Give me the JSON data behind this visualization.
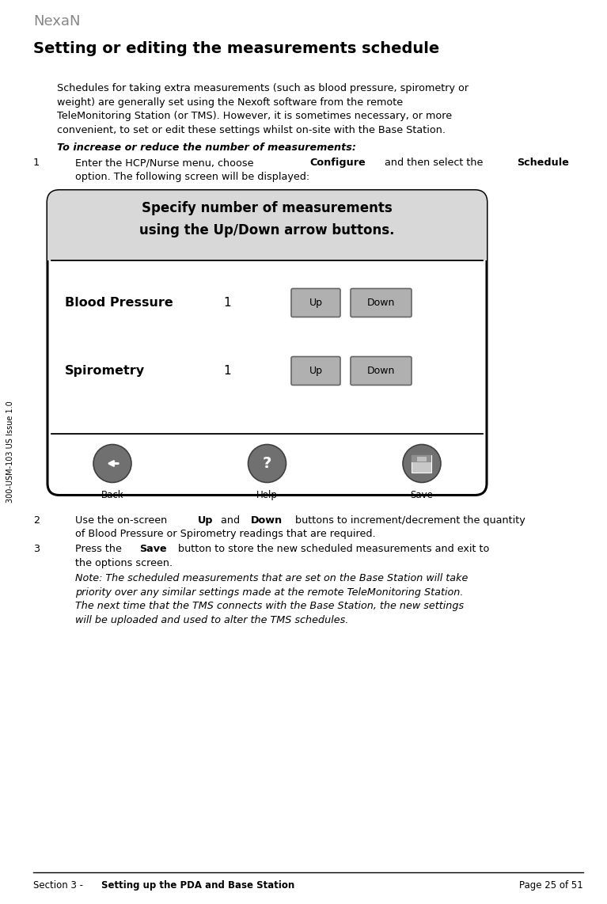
{
  "page_width": 7.67,
  "page_height": 11.42,
  "bg": "#ffffff",
  "logo": "NexaN",
  "logo_color": "#888888",
  "title": "Setting or editing the measurements schedule",
  "title_fs": 14,
  "body_fs": 9.2,
  "para1_line1": "Schedules for taking extra measurements (such as blood pressure, spirometry or",
  "para1_line2": "weight) are generally set using the Nexoft software from the remote",
  "para1_line3": "TeleMonitoring Station (or TMS). However, it is sometimes necessary, or more",
  "para1_line4": "convenient, to set or edit these settings whilst on-site with the Base Station.",
  "ibheading": "To increase or reduce the number of measurements:",
  "s1_pre": "Enter the HCP/Nurse menu, choose ",
  "s1_b1": "Configure",
  "s1_mid": " and then select the ",
  "s1_b2": "Schedule",
  "s1_line2": "option. The following screen will be displayed:",
  "screen_title1": "Specify number of measurements",
  "screen_title2": "using the Up/Down arrow buttons.",
  "screen_bp": "Blood Pressure",
  "screen_sp": "Spirometry",
  "screen_val": "1",
  "screen_up": "Up",
  "screen_down": "Down",
  "screen_back": "Back",
  "screen_help": "Help",
  "screen_save": "Save",
  "s2_pre": "Use the on-screen ",
  "s2_b1": "Up",
  "s2_mid": " and ",
  "s2_b2": "Down",
  "s2_post": " buttons to increment/decrement the quantity",
  "s2_line2": "of Blood Pressure or Spirometry readings that are required.",
  "s3_pre": "Press the ",
  "s3_b1": "Save",
  "s3_post": " button to store the new scheduled measurements and exit to",
  "s3_line2": "the options screen.",
  "note_line1": "Note: The scheduled measurements that are set on the Base Station will take",
  "note_line2": "priority over any similar settings made at the remote TeleMonitoring Station.",
  "note_line3": "The next time that the TMS connects with the Base Station, the new settings",
  "note_line4": "will be uploaded and used to alter the TMS schedules.",
  "footer_norm": "Section 3 - ",
  "footer_bold": "Setting up the PDA and Base Station",
  "footer_right": "Page 25 of 51",
  "sidebar": "300-USM-103 US Issue 1.0",
  "gray_btn": "#b0b0b0",
  "circ_btn": "#707070",
  "screen_title_bg": "#d8d8d8"
}
